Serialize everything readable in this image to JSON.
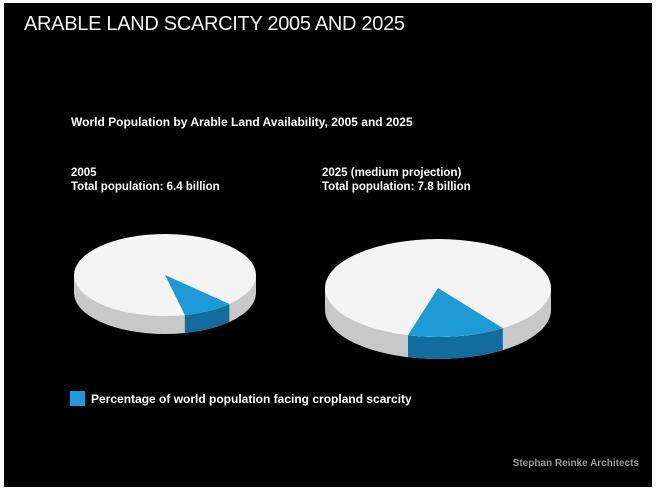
{
  "page": {
    "title": "ARABLE LAND SCARCITY 2005 AND 2025",
    "subtitle": "World Population by Arable Land Availability, 2005 and 2025",
    "credit": "Stephan Reinke Architects"
  },
  "legend": {
    "label": "Percentage of world population facing cropland scarcity",
    "color": "#1e9bd7"
  },
  "colors": {
    "background": "#000000",
    "pie_top": "#f4f4f4",
    "pie_side": "#c8c8c8",
    "slice_top": "#1e9bd7",
    "slice_side": "#126c9e"
  },
  "chart_data": [
    {
      "type": "pie",
      "year_label": "2005",
      "total_label": "Total population: 6.4 billion",
      "total_population_billion": 6.4,
      "slices": [
        {
          "label": "Percentage of world population facing cropland scarcity",
          "share": 0.09
        },
        {
          "label": "",
          "share": 0.91
        }
      ]
    },
    {
      "type": "pie",
      "year_label": "2025 (medium projection)",
      "total_label": "Total population: 7.8 billion",
      "total_population_billion": 7.8,
      "slices": [
        {
          "label": "Percentage of world population facing cropland scarcity",
          "share": 0.14
        },
        {
          "label": "",
          "share": 0.86
        }
      ]
    }
  ]
}
